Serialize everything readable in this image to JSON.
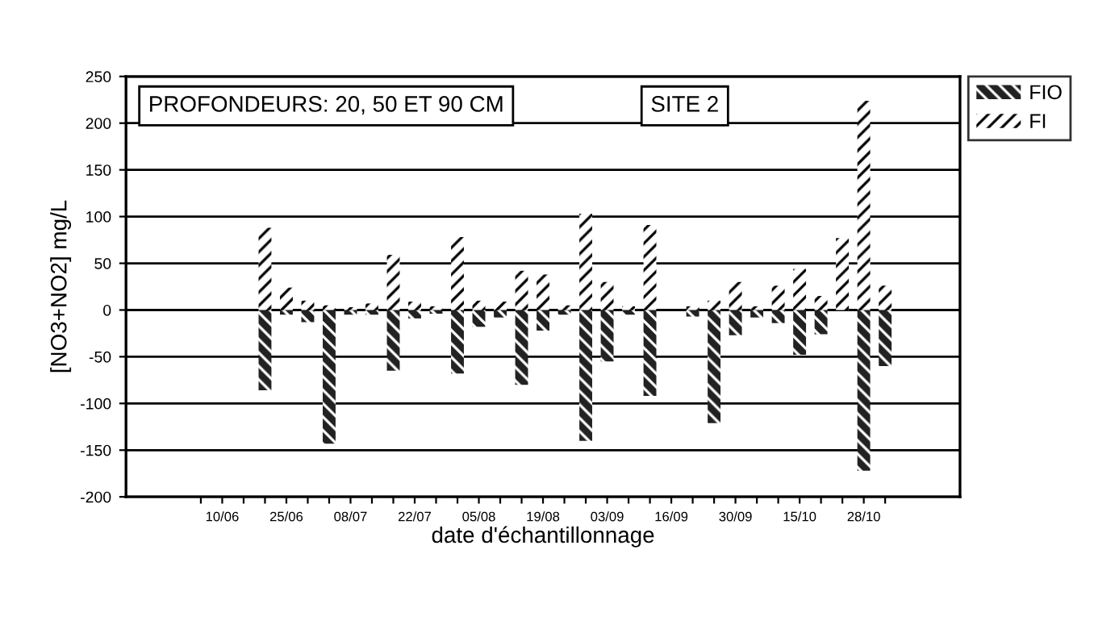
{
  "chart_data": {
    "type": "bar",
    "xlabel": "date d'échantillonnage",
    "ylabel": "[NO3+NO2] mg/L",
    "annotations": [
      "PROFONDEURS: 20, 50 ET 90 CM",
      "SITE 2"
    ],
    "categories": [
      null,
      "10/06",
      null,
      null,
      "25/06",
      null,
      null,
      "08/07",
      null,
      null,
      "22/07",
      null,
      null,
      "05/08",
      null,
      null,
      "19/08",
      null,
      null,
      "03/09",
      null,
      null,
      "16/09",
      null,
      null,
      "30/09",
      null,
      null,
      "15/10",
      null,
      null,
      "28/10",
      null
    ],
    "series": [
      {
        "name": "FIO",
        "color": "#222222",
        "values": [
          null,
          null,
          null,
          -86,
          -5,
          -13,
          -143,
          -5,
          -5,
          -65,
          -9,
          -4,
          -68,
          -18,
          -8,
          -80,
          -22,
          -5,
          -140,
          -55,
          -5,
          -92,
          null,
          -7,
          -121,
          -27,
          -8,
          -14,
          -48,
          -26,
          null,
          -172,
          -60
        ]
      },
      {
        "name": "FI",
        "color": "#ffffff",
        "values": [
          null,
          null,
          null,
          88,
          24,
          10,
          5,
          3,
          7,
          59,
          9,
          4,
          78,
          10,
          9,
          42,
          38,
          5,
          103,
          30,
          4,
          91,
          null,
          4,
          10,
          30,
          4,
          26,
          44,
          15,
          77,
          224,
          26
        ]
      }
    ],
    "ylim": [
      -200,
      250
    ],
    "yticks": [
      -200,
      -150,
      -100,
      -50,
      0,
      50,
      100,
      150,
      200,
      250
    ],
    "grid": "y",
    "legend": "top right",
    "stacked": true
  }
}
